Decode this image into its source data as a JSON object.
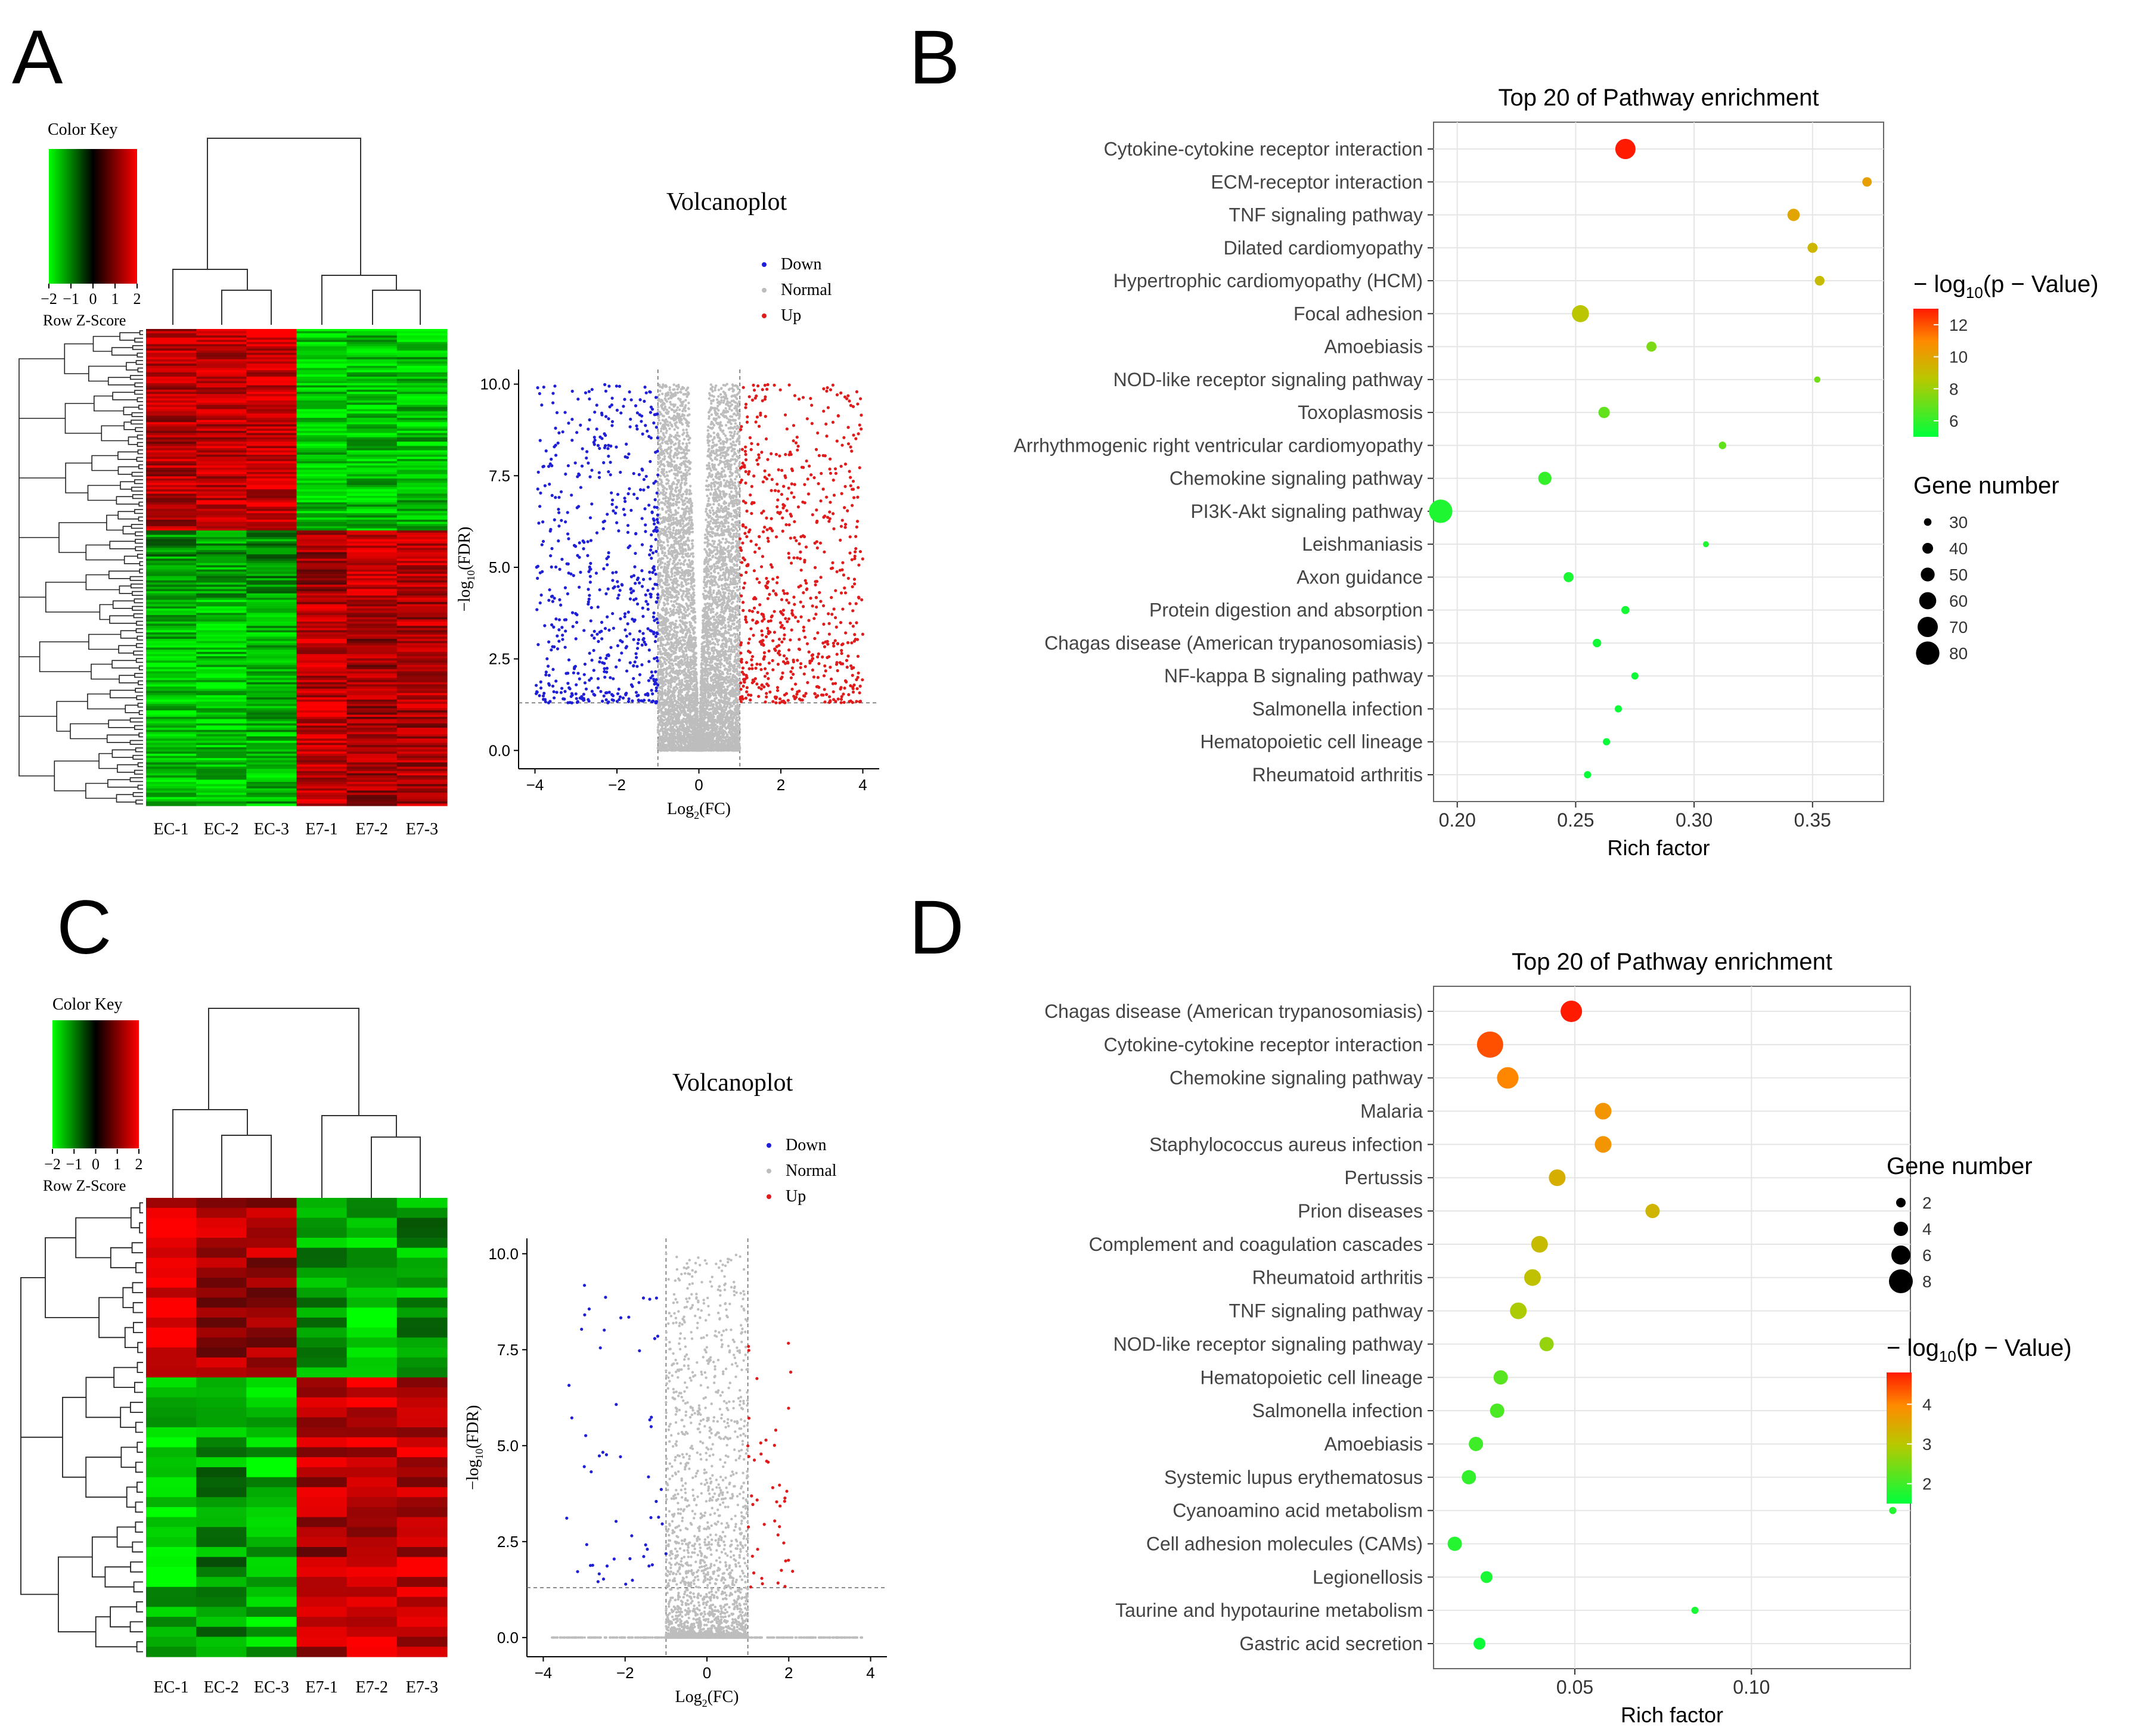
{
  "panels": {
    "A": {
      "letter": "A",
      "heatmap": {
        "color_key_title": "Color Key",
        "color_key_ticks": [
          "−2",
          "−1",
          "0",
          "1",
          "2"
        ],
        "color_key_label": "Row Z-Score",
        "samples": [
          "EC-1",
          "EC-2",
          "EC-3",
          "E7-1",
          "E7-2",
          "E7-3"
        ]
      },
      "volcano": {
        "title": "Volcanoplot",
        "legend": [
          {
            "label": "Down",
            "color": "#1f1fd6"
          },
          {
            "label": "Normal",
            "color": "#bdbdbd"
          },
          {
            "label": "Up",
            "color": "#e01b1b"
          }
        ],
        "xlabel_main": "Log",
        "xlabel_sub": "2",
        "xlabel_tail": "(FC)",
        "ylabel_pre": "−log",
        "ylabel_sub": "10",
        "ylabel_tail": "(FDR)",
        "xticks": [
          "−4",
          "−2",
          "0",
          "2",
          "4"
        ],
        "yticks": [
          "0.0",
          "2.5",
          "5.0",
          "7.5",
          "10.0"
        ]
      }
    },
    "B": {
      "letter": "B"
    },
    "C": {
      "letter": "C",
      "heatmap": {
        "color_key_title": "Color Key",
        "color_key_ticks": [
          "−2",
          "−1",
          "0",
          "1",
          "2"
        ],
        "color_key_label": "Row Z-Score",
        "samples": [
          "EC-1",
          "EC-2",
          "EC-3",
          "E7-1",
          "E7-2",
          "E7-3"
        ]
      },
      "volcano": {
        "title": "Volcanoplot",
        "legend": [
          {
            "label": "Down",
            "color": "#1f1fd6"
          },
          {
            "label": "Normal",
            "color": "#bdbdbd"
          },
          {
            "label": "Up",
            "color": "#e01b1b"
          }
        ],
        "xlabel_main": "Log",
        "xlabel_sub": "2",
        "xlabel_tail": "(FC)",
        "ylabel_pre": "−log",
        "ylabel_sub": "10",
        "ylabel_tail": "(FDR)",
        "xticks": [
          "−4",
          "−2",
          "0",
          "2",
          "4"
        ],
        "yticks": [
          "0.0",
          "2.5",
          "5.0",
          "7.5",
          "10.0"
        ]
      }
    },
    "D": {
      "letter": "D"
    }
  },
  "chart_data": [
    {
      "panel": "B",
      "type": "scatter",
      "title": "Top 20 of Pathway enrichment",
      "xlabel": "Rich factor",
      "xlim": [
        0.19,
        0.38
      ],
      "xticks": [
        "0.20",
        "0.25",
        "0.30",
        "0.35"
      ],
      "color_legend_title_pre": "− log",
      "color_legend_title_sub": "10",
      "color_legend_title_post": "(p − Value)",
      "color_ticks": [
        "12",
        "10",
        "8",
        "6"
      ],
      "color_range": [
        5,
        13
      ],
      "size_legend_title": "Gene number",
      "size_ticks": [
        "30",
        "40",
        "50",
        "60",
        "70",
        "80"
      ],
      "size_range": [
        25,
        85
      ],
      "pathways": [
        {
          "name": "Cytokine-cytokine receptor interaction",
          "x": 0.271,
          "genes": 70,
          "logp": 13.0
        },
        {
          "name": "ECM-receptor interaction",
          "x": 0.373,
          "genes": 36,
          "logp": 10.2
        },
        {
          "name": "TNF signaling pathway",
          "x": 0.342,
          "genes": 45,
          "logp": 10.0
        },
        {
          "name": "Dilated cardiomyopathy",
          "x": 0.35,
          "genes": 38,
          "logp": 9.3
        },
        {
          "name": "Hypertrophic cardiomyopathy (HCM)",
          "x": 0.353,
          "genes": 37,
          "logp": 9.1
        },
        {
          "name": "Focal adhesion",
          "x": 0.252,
          "genes": 60,
          "logp": 8.7
        },
        {
          "name": "Amoebiasis",
          "x": 0.282,
          "genes": 38,
          "logp": 7.4
        },
        {
          "name": "NOD-like receptor signaling pathway",
          "x": 0.352,
          "genes": 26,
          "logp": 7.2
        },
        {
          "name": "Toxoplasmosis",
          "x": 0.262,
          "genes": 42,
          "logp": 6.9
        },
        {
          "name": "Arrhythmogenic right ventricular cardiomyopathy",
          "x": 0.312,
          "genes": 30,
          "logp": 6.9
        },
        {
          "name": "Chemokine signaling pathway",
          "x": 0.237,
          "genes": 48,
          "logp": 6.0
        },
        {
          "name": "PI3K-Akt signaling pathway",
          "x": 0.193,
          "genes": 80,
          "logp": 5.6
        },
        {
          "name": "Leishmaniasis",
          "x": 0.305,
          "genes": 25,
          "logp": 5.6
        },
        {
          "name": "Axon guidance",
          "x": 0.247,
          "genes": 38,
          "logp": 5.5
        },
        {
          "name": "Protein digestion and absorption",
          "x": 0.271,
          "genes": 32,
          "logp": 5.4
        },
        {
          "name": "Chagas disease (American trypanosomiasis)",
          "x": 0.259,
          "genes": 33,
          "logp": 5.4
        },
        {
          "name": "NF-kappa B signaling pathway",
          "x": 0.275,
          "genes": 29,
          "logp": 5.3
        },
        {
          "name": "Salmonella infection",
          "x": 0.268,
          "genes": 29,
          "logp": 5.2
        },
        {
          "name": "Hematopoietic cell lineage",
          "x": 0.263,
          "genes": 29,
          "logp": 5.2
        },
        {
          "name": "Rheumatoid arthritis",
          "x": 0.255,
          "genes": 29,
          "logp": 5.1
        }
      ]
    },
    {
      "panel": "D",
      "type": "scatter",
      "title": "Top 20 of Pathway enrichment",
      "xlabel": "Rich factor",
      "xlim": [
        0.01,
        0.145
      ],
      "xticks": [
        "0.05",
        "0.10"
      ],
      "size_legend_title": "Gene number",
      "size_ticks": [
        "2",
        "4",
        "6",
        "8"
      ],
      "size_range": [
        1,
        9
      ],
      "color_legend_title_pre": "− log",
      "color_legend_title_sub": "10",
      "color_legend_title_post": "(p − Value)",
      "color_ticks": [
        "4",
        "3",
        "2"
      ],
      "color_range": [
        1.5,
        4.8
      ],
      "pathways": [
        {
          "name": "Chagas disease (American trypanosomiasis)",
          "x": 0.049,
          "genes": 7,
          "logp": 4.8
        },
        {
          "name": "Cytokine-cytokine receptor interaction",
          "x": 0.026,
          "genes": 9,
          "logp": 4.4
        },
        {
          "name": "Chemokine signaling pathway",
          "x": 0.031,
          "genes": 7,
          "logp": 4.0
        },
        {
          "name": "Malaria",
          "x": 0.058,
          "genes": 5,
          "logp": 3.8
        },
        {
          "name": "Staphylococcus aureus infection",
          "x": 0.058,
          "genes": 5,
          "logp": 3.8
        },
        {
          "name": "Pertussis",
          "x": 0.045,
          "genes": 5,
          "logp": 3.4
        },
        {
          "name": "Prion diseases",
          "x": 0.072,
          "genes": 4,
          "logp": 3.3
        },
        {
          "name": "Complement and coagulation cascades",
          "x": 0.04,
          "genes": 5,
          "logp": 3.2
        },
        {
          "name": "Rheumatoid arthritis",
          "x": 0.038,
          "genes": 5,
          "logp": 3.1
        },
        {
          "name": "TNF signaling pathway",
          "x": 0.034,
          "genes": 5,
          "logp": 2.9
        },
        {
          "name": "NOD-like receptor signaling pathway",
          "x": 0.042,
          "genes": 4,
          "logp": 2.7
        },
        {
          "name": "Hematopoietic cell lineage",
          "x": 0.029,
          "genes": 4,
          "logp": 2.2
        },
        {
          "name": "Salmonella infection",
          "x": 0.028,
          "genes": 4,
          "logp": 2.1
        },
        {
          "name": "Amoebiasis",
          "x": 0.022,
          "genes": 4,
          "logp": 2.0
        },
        {
          "name": "Systemic lupus erythematosus",
          "x": 0.02,
          "genes": 4,
          "logp": 1.9
        },
        {
          "name": "Cyanoamino acid metabolism",
          "x": 0.14,
          "genes": 1,
          "logp": 1.8
        },
        {
          "name": "Cell adhesion molecules (CAMs)",
          "x": 0.016,
          "genes": 4,
          "logp": 1.8
        },
        {
          "name": "Legionellosis",
          "x": 0.025,
          "genes": 3,
          "logp": 1.7
        },
        {
          "name": "Taurine and hypotaurine metabolism",
          "x": 0.084,
          "genes": 1,
          "logp": 1.7
        },
        {
          "name": "Gastric acid secretion",
          "x": 0.023,
          "genes": 3,
          "logp": 1.6
        }
      ]
    }
  ]
}
